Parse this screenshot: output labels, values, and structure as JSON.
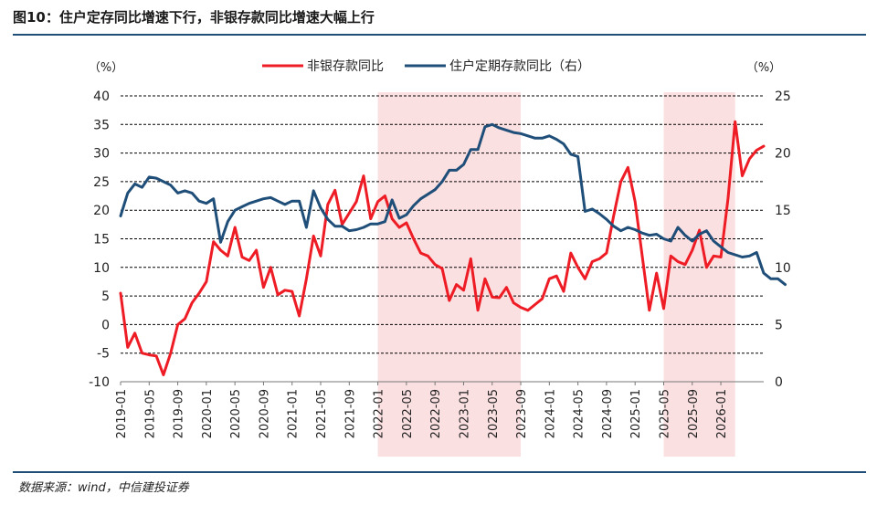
{
  "figure": {
    "title": "图10：住户定存同比增速下行，非银存款同比增速大幅上行",
    "source": "数据来源：wind，中信建投证券"
  },
  "chart_data": {
    "type": "line",
    "left_unit": "（%）",
    "right_unit": "（%）",
    "ylim_left": [
      -10,
      40
    ],
    "ylim_right": [
      0,
      25
    ],
    "left_ticks": [
      -10,
      -5,
      0,
      5,
      10,
      15,
      20,
      25,
      30,
      35,
      40
    ],
    "right_ticks": [
      0,
      5,
      10,
      15,
      20,
      25
    ],
    "grid": "horizontal-dashed",
    "legend_position": "top-center",
    "x_tick_labels": [
      "2019-01",
      "2019-05",
      "2019-09",
      "2020-01",
      "2020-05",
      "2020-09",
      "2021-01",
      "2021-05",
      "2021-09",
      "2022-01",
      "2022-05",
      "2022-09",
      "2023-01",
      "2023-05",
      "2023-09",
      "2024-01",
      "2024-05",
      "2024-09",
      "2025-01",
      "2025-05",
      "2025-09",
      "2026-01"
    ],
    "shaded_periods": [
      {
        "start": "2022-01",
        "end": "2023-09"
      },
      {
        "start": "2025-05",
        "end": "2026-03"
      }
    ],
    "start_month": "2019-01",
    "series": [
      {
        "name": "非银存款同比",
        "axis": "left",
        "color": "#ee1c25",
        "values": [
          5.5,
          -4,
          -1.5,
          -5,
          -5.3,
          -5.5,
          -8.8,
          -5,
          0,
          1,
          3.8,
          5.5,
          7.5,
          14.5,
          13,
          12,
          17,
          11.8,
          11.2,
          13,
          6.5,
          10,
          5.2,
          6,
          5.8,
          1.5,
          8,
          15.5,
          12,
          21,
          23.5,
          17.5,
          19.5,
          21.5,
          26,
          18.5,
          21.5,
          22.5,
          18.5,
          17,
          17.8,
          15,
          12.5,
          12,
          10.5,
          9.8,
          4.2,
          7,
          6,
          11.5,
          2.5,
          8,
          4.8,
          4.7,
          6.5,
          3.8,
          3,
          2.5,
          3.5,
          4.5,
          8,
          8.5,
          5.8,
          12.5,
          10,
          8,
          11,
          11.5,
          12.5,
          19,
          25,
          27.5,
          21.5,
          12,
          2.5,
          9,
          2.8,
          12,
          11,
          10.5,
          13,
          16.5,
          10,
          12,
          11.8,
          22,
          35.5,
          26,
          29,
          30.5,
          31.2
        ]
      },
      {
        "name": "住户定期存款同比（右）",
        "axis": "right",
        "color": "#1f4e79",
        "values": [
          14.5,
          16.5,
          17.3,
          17,
          17.9,
          17.8,
          17.5,
          17.2,
          16.5,
          16.7,
          16.5,
          15.8,
          15.6,
          16,
          12.2,
          14,
          15,
          15.3,
          15.6,
          15.8,
          16,
          16.1,
          15.8,
          15.5,
          15.8,
          15.8,
          13.5,
          16.7,
          15.2,
          14.2,
          13.6,
          13.6,
          13.2,
          13.3,
          13.5,
          13.8,
          13.8,
          14,
          15.9,
          14.3,
          14.6,
          15.4,
          16,
          16.4,
          16.8,
          17.5,
          18.5,
          18.5,
          19,
          20.3,
          20.3,
          22.3,
          22.5,
          22.2,
          22,
          21.8,
          21.7,
          21.5,
          21.3,
          21.3,
          21.5,
          21.2,
          20.8,
          19.9,
          19.7,
          14.9,
          15.1,
          14.7,
          14.2,
          13.6,
          13.2,
          13.5,
          13.3,
          13,
          12.8,
          12.9,
          12.5,
          12.3,
          13.5,
          12.8,
          12.3,
          12.9,
          13.2,
          12.3,
          11.8,
          11.3,
          11.1,
          10.9,
          11,
          11.3,
          9.5,
          9,
          9,
          8.5
        ]
      }
    ]
  }
}
